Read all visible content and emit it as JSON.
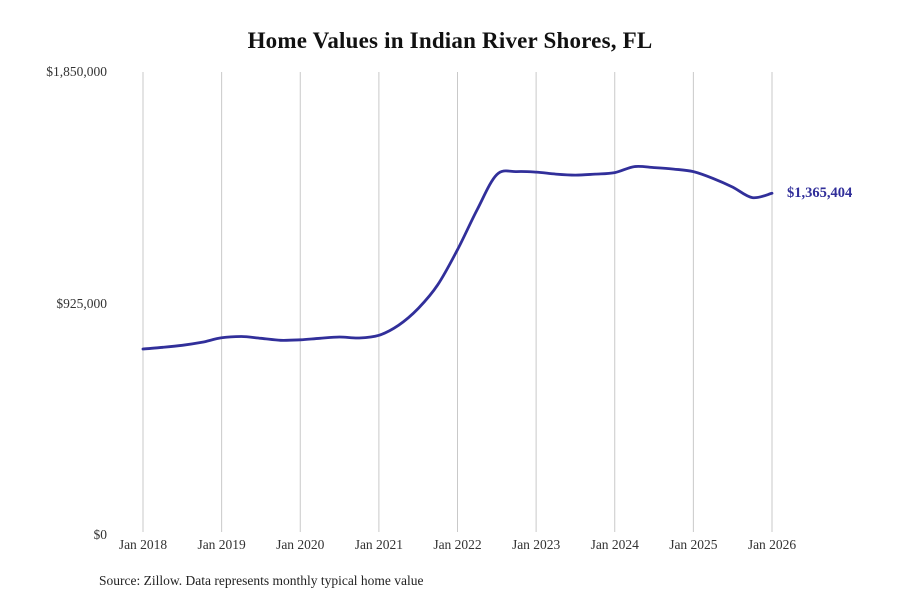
{
  "page": {
    "background": "#ffffff"
  },
  "chart_data": {
    "type": "line",
    "title": "Home Values in Indian River Shores, FL",
    "source": "Source: Zillow. Data represents monthly typical home value",
    "end_label": "$1,365,404",
    "line_color": "#312f9a",
    "grid_color": "#c9c9c9",
    "grid": "vertical-only",
    "legend": "none",
    "ylim": [
      0,
      1850000
    ],
    "y_ticks": [
      {
        "value": 0,
        "label": "$0"
      },
      {
        "value": 925000,
        "label": "$925,000"
      },
      {
        "value": 1850000,
        "label": "$1,850,000"
      }
    ],
    "x_tick_labels": [
      "Jan 2018",
      "Jan 2019",
      "Jan 2020",
      "Jan 2021",
      "Jan 2022",
      "Jan 2023",
      "Jan 2024",
      "Jan 2025",
      "Jan 2026"
    ],
    "x": [
      "2018-01",
      "2018-04",
      "2018-07",
      "2018-10",
      "2019-01",
      "2019-04",
      "2019-07",
      "2019-10",
      "2020-01",
      "2020-04",
      "2020-07",
      "2020-10",
      "2021-01",
      "2021-04",
      "2021-07",
      "2021-10",
      "2022-01",
      "2022-04",
      "2022-07",
      "2022-10",
      "2023-01",
      "2023-04",
      "2023-07",
      "2023-10",
      "2024-01",
      "2024-04",
      "2024-07",
      "2024-10",
      "2025-01",
      "2025-04",
      "2025-07",
      "2025-10",
      "2026-01"
    ],
    "values": [
      743000,
      750000,
      758000,
      770000,
      788000,
      793000,
      786000,
      778000,
      780000,
      786000,
      791000,
      787000,
      798000,
      838000,
      905000,
      1000000,
      1140000,
      1300000,
      1440000,
      1452000,
      1450000,
      1442000,
      1438000,
      1442000,
      1448000,
      1472000,
      1468000,
      1462000,
      1452000,
      1425000,
      1390000,
      1348000,
      1365404
    ]
  }
}
